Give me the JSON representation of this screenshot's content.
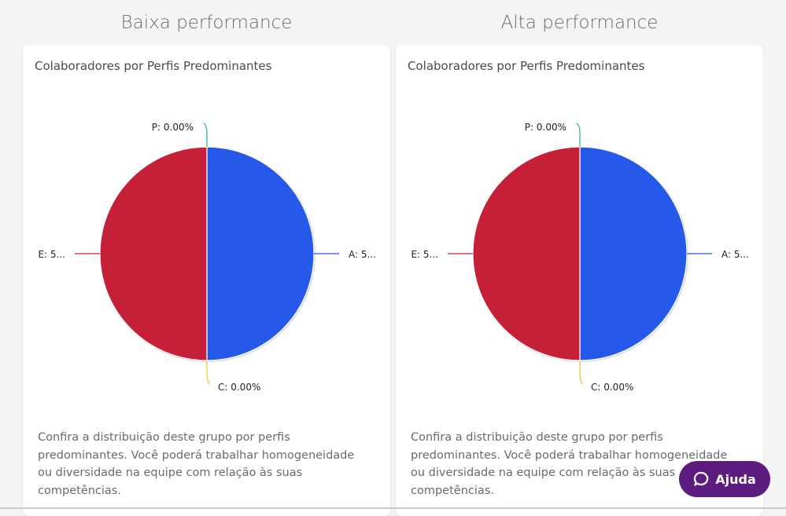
{
  "columns": [
    {
      "title": "Baixa performance",
      "card_title": "Colaboradores por Perfis Predominantes",
      "description": "Confira a distribuição deste grupo por perfis predominantes. Você poderá trabalhar homogeneidade ou diversidade na equipe com relação às suas competências."
    },
    {
      "title": "Alta performance",
      "card_title": "Colaboradores por Perfis Predominantes",
      "description": "Confira a distribuição deste grupo por perfis predominantes. Você poderá trabalhar homogeneidade ou diversidade na equipe com relação às suas competências."
    }
  ],
  "chart_data": [
    {
      "type": "pie",
      "title": "Colaboradores por Perfis Predominantes",
      "slices": [
        {
          "name": "A",
          "value": 50,
          "label": "A: 5...",
          "color": "#2659ea"
        },
        {
          "name": "C",
          "value": 0,
          "label": "C: 0.00%",
          "color": "#f2c12e"
        },
        {
          "name": "E",
          "value": 50,
          "label": "E: 5...",
          "color": "#c62038"
        },
        {
          "name": "P",
          "value": 0,
          "label": "P: 0.00%",
          "color": "#1fb57a"
        }
      ]
    },
    {
      "type": "pie",
      "title": "Colaboradores por Perfis Predominantes",
      "slices": [
        {
          "name": "A",
          "value": 50,
          "label": "A: 5...",
          "color": "#2659ea"
        },
        {
          "name": "C",
          "value": 0,
          "label": "C: 0.00%",
          "color": "#f2c12e"
        },
        {
          "name": "E",
          "value": 50,
          "label": "E: 5...",
          "color": "#c62038"
        },
        {
          "name": "P",
          "value": 0,
          "label": "P: 0.00%",
          "color": "#1fb57a"
        }
      ]
    }
  ],
  "help_button": {
    "label": "Ajuda",
    "icon": "chat-bubble-icon",
    "color": "#5c1c80"
  }
}
